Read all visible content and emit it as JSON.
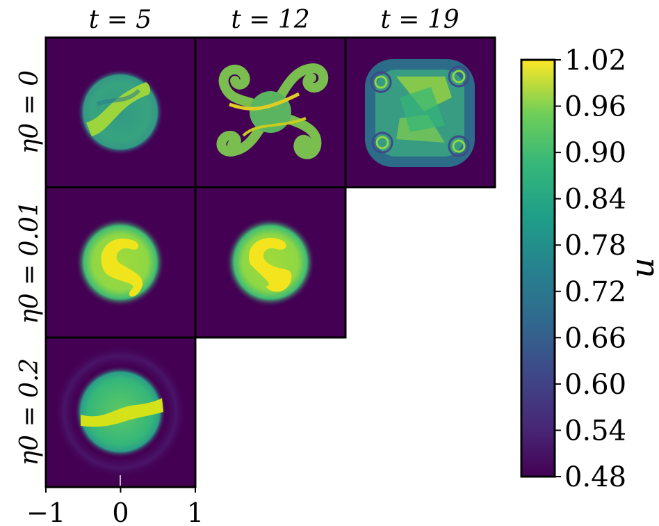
{
  "chart_data": {
    "type": "heatmap",
    "columns": [
      {
        "label": "t = 5",
        "t": 5
      },
      {
        "label": "t = 12",
        "t": 12
      },
      {
        "label": "t = 19",
        "t": 19
      }
    ],
    "rows": [
      {
        "label": "η0 = 0",
        "eta0": 0,
        "available_t": [
          5,
          12,
          19
        ]
      },
      {
        "label": "η0 = 0.01",
        "eta0": 0.01,
        "available_t": [
          5,
          12
        ]
      },
      {
        "label": "η0 = 0.2",
        "eta0": 0.2,
        "available_t": [
          5
        ]
      }
    ],
    "x_axis": {
      "ticks": [
        -1,
        0,
        1
      ],
      "tick_labels": [
        "−1",
        "0",
        "1"
      ],
      "range": [
        -1,
        1
      ]
    },
    "colorbar": {
      "label": "u",
      "range": [
        0.48,
        1.02
      ],
      "ticks": [
        1.02,
        0.96,
        0.9,
        0.84,
        0.78,
        0.72,
        0.66,
        0.6,
        0.54,
        0.48
      ],
      "tick_labels": [
        "1.02",
        "0.96",
        "0.90",
        "0.84",
        "0.78",
        "0.72",
        "0.66",
        "0.60",
        "0.54",
        "0.48"
      ],
      "colormap": "viridis"
    },
    "colors": {
      "background_low": "#440154",
      "high": "#fde725",
      "mid": "#21918c"
    }
  }
}
